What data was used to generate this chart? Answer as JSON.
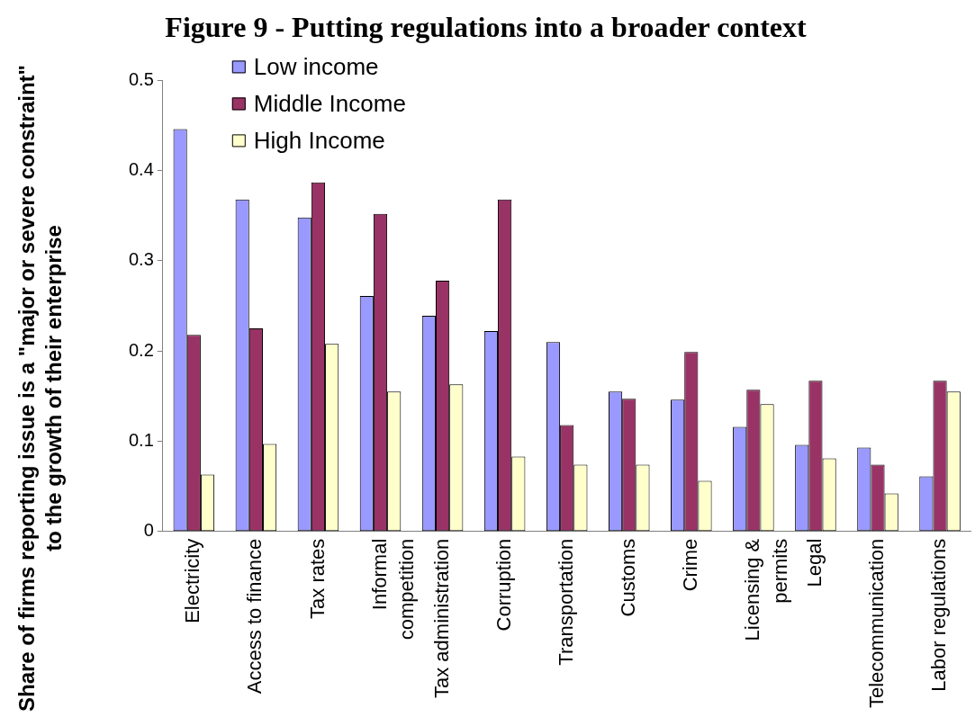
{
  "chart_data": {
    "type": "bar",
    "title": "Figure 9 - Putting regulations into a broader context",
    "ylabel": "Share of firms reporting issue is a \"major or severe constraint\" to the growth of their enterprise",
    "categories": [
      "Electricity",
      "Access to finance",
      "Tax rates",
      "Informal competition",
      "Tax administration",
      "Corruption",
      "Transportation",
      "Customs",
      "Crime",
      "Licensing & permits",
      "Legal",
      "Telecommunication",
      "Labor regulations"
    ],
    "series": [
      {
        "name": "Low income",
        "color": "#9999ff",
        "values": [
          0.446,
          0.368,
          0.348,
          0.261,
          0.239,
          0.222,
          0.21,
          0.155,
          0.146,
          0.116,
          0.096,
          0.093,
          0.061
        ]
      },
      {
        "name": "Middle Income",
        "color": "#993366",
        "values": [
          0.218,
          0.225,
          0.387,
          0.352,
          0.278,
          0.368,
          0.118,
          0.147,
          0.199,
          0.157,
          0.167,
          0.074,
          0.167
        ]
      },
      {
        "name": "High Income",
        "color": "#ffffcc",
        "values": [
          0.063,
          0.097,
          0.208,
          0.155,
          0.163,
          0.083,
          0.074,
          0.074,
          0.056,
          0.141,
          0.081,
          0.042,
          0.155
        ]
      }
    ],
    "ylim": [
      0,
      0.5
    ],
    "yticks": [
      0,
      0.1,
      0.2,
      0.3,
      0.4,
      0.5
    ],
    "legend": "top left"
  }
}
